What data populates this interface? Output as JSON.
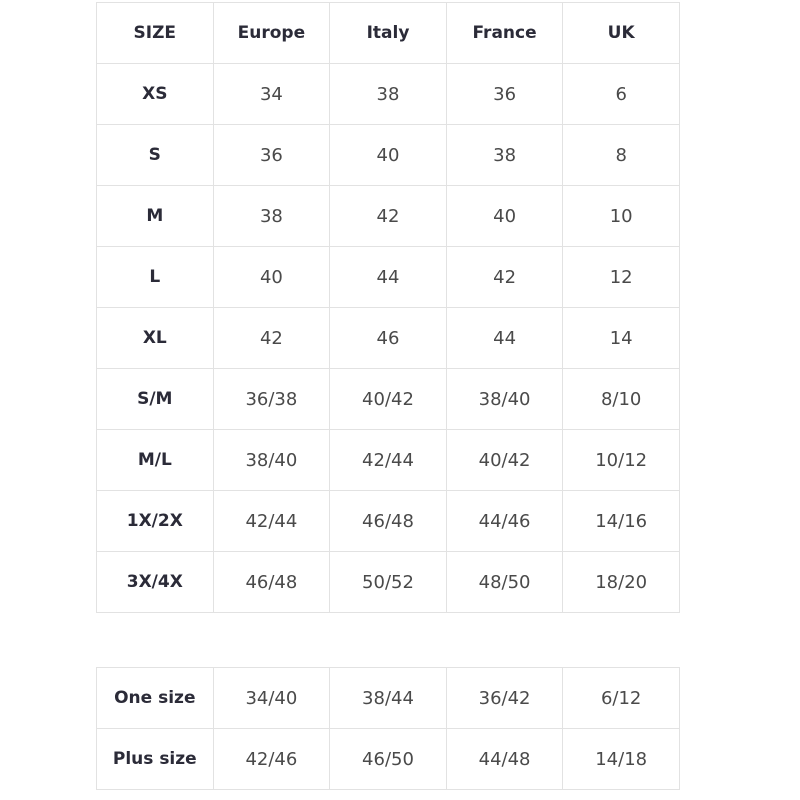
{
  "size_table": {
    "headers": [
      "SIZE",
      "Europe",
      "Italy",
      "France",
      "UK"
    ],
    "rows": [
      [
        "XS",
        "34",
        "38",
        "36",
        "6"
      ],
      [
        "S",
        "36",
        "40",
        "38",
        "8"
      ],
      [
        "M",
        "38",
        "42",
        "40",
        "10"
      ],
      [
        "L",
        "40",
        "44",
        "42",
        "12"
      ],
      [
        "XL",
        "42",
        "46",
        "44",
        "14"
      ],
      [
        "S/M",
        "36/38",
        "40/42",
        "38/40",
        "8/10"
      ],
      [
        "M/L",
        "38/40",
        "42/44",
        "40/42",
        "10/12"
      ],
      [
        "1X/2X",
        "42/44",
        "46/48",
        "44/46",
        "14/16"
      ],
      [
        "3X/4X",
        "46/48",
        "50/52",
        "48/50",
        "18/20"
      ]
    ]
  },
  "special_sizes_table": {
    "rows": [
      [
        "One size",
        "34/40",
        "38/44",
        "36/42",
        "6/12"
      ],
      [
        "Plus size",
        "42/46",
        "46/50",
        "44/48",
        "14/18"
      ]
    ]
  }
}
